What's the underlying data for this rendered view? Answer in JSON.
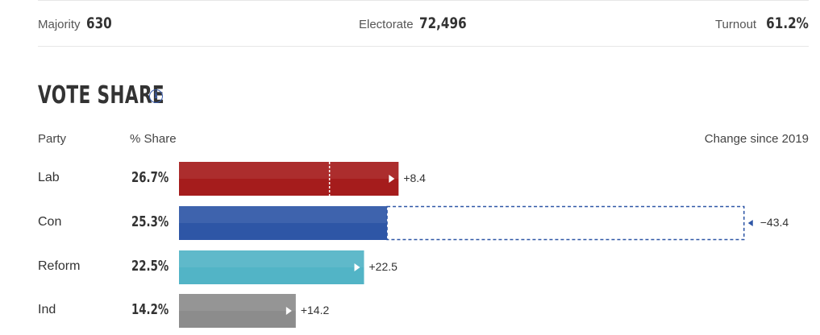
{
  "stats": {
    "majority_label": "Majority",
    "majority_value": "630",
    "electorate_label": "Electorate",
    "electorate_value": "72,496",
    "turnout_label": "Turnout",
    "turnout_value": "61.2%"
  },
  "section": {
    "title": "VOTE SHARE",
    "info_icon": "info-icon"
  },
  "columns": {
    "party": "Party",
    "share": "% Share",
    "change": "Change since 2019"
  },
  "chart_data": {
    "type": "bar",
    "orientation": "horizontal",
    "title": "VOTE SHARE",
    "categories": [
      "Lab",
      "Con",
      "Reform",
      "Ind"
    ],
    "series": [
      {
        "values": [
          26.7,
          25.3,
          22.5,
          14.2
        ]
      }
    ],
    "value_labels": [
      "26.7%",
      "25.3%",
      "22.5%",
      "14.2%"
    ],
    "change_since_2019": [
      8.4,
      -43.4,
      22.5,
      14.2
    ],
    "change_labels": [
      "+8.4",
      "−43.4",
      "+22.5",
      "+14.2"
    ],
    "colors": [
      "#a51c1c",
      "#2e56a6",
      "#52b4c6",
      "#8c8c8c"
    ],
    "xlim": [
      0,
      70
    ],
    "grid": false,
    "legend": "none"
  }
}
